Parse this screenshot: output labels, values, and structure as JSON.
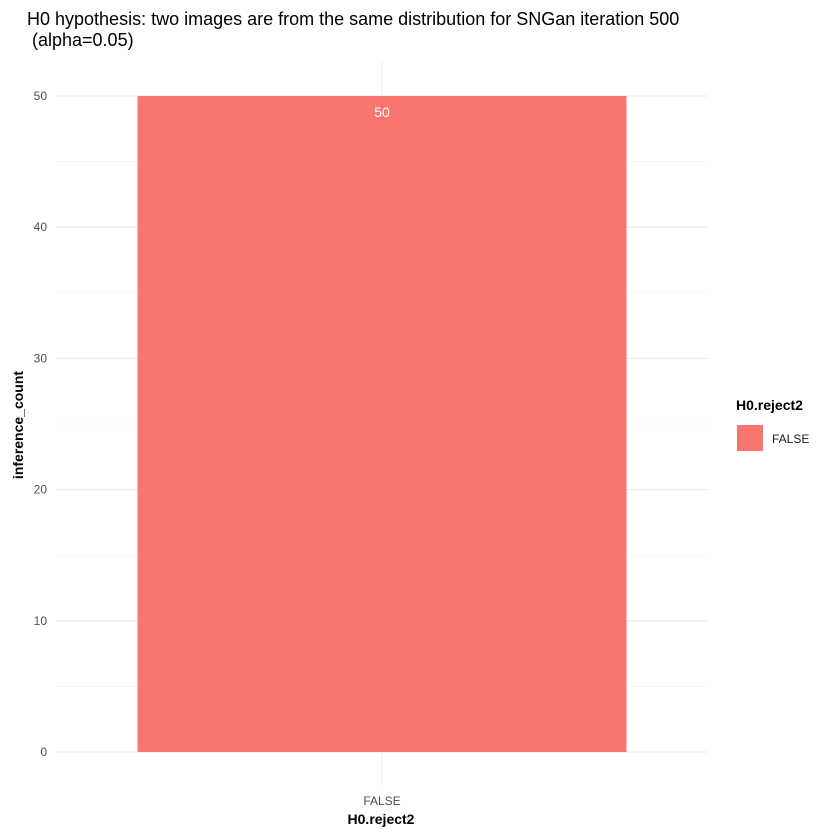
{
  "chart_data": {
    "type": "bar",
    "title": "H0 hypothesis: two images are from the same distribution for SNGan iteration 500",
    "subtitle": " (alpha=0.05)",
    "xlabel": "H0.reject2",
    "ylabel": "inference_count",
    "categories": [
      "FALSE"
    ],
    "values": [
      50
    ],
    "data_labels": [
      "50"
    ],
    "ylim": [
      0,
      52
    ],
    "yticks": [
      0,
      10,
      20,
      30,
      40,
      50
    ],
    "grid": true,
    "legend": {
      "title": "H0.reject2",
      "placement": "right",
      "entries": [
        {
          "label": "FALSE",
          "color": "#F8766D"
        }
      ]
    },
    "bar_color": "#F8766D"
  }
}
